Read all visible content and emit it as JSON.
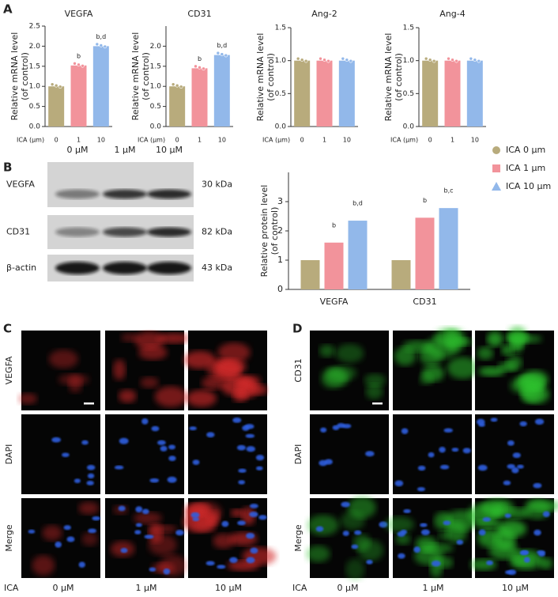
{
  "panel_labels": [
    "A",
    "B",
    "C",
    "D"
  ],
  "chart_data": [
    {
      "type": "bar",
      "title": "VEGFA",
      "ylabel": [
        "Relative mRNA level",
        "(of control)"
      ],
      "xlabel": "ICA (μm)",
      "categories": [
        "0",
        "1",
        "10"
      ],
      "values": [
        1.0,
        1.52,
        2.0
      ],
      "annotations": [
        null,
        "b",
        "b,d"
      ],
      "colors": [
        "#b8ab7c",
        "#f2939b",
        "#92b8ea"
      ],
      "ylim": [
        0,
        2.5
      ],
      "yticks": [
        {
          "value": 0,
          "label": "0.0"
        },
        0.5,
        {
          "value": 1,
          "label": "1.0"
        },
        1.5,
        {
          "value": 2,
          "label": "2.0"
        },
        2.5
      ]
    },
    {
      "type": "bar",
      "title": "CD31",
      "ylabel": [
        "Relative mRNA level",
        "(of control)"
      ],
      "xlabel": "ICA (μm)",
      "categories": [
        "0",
        "1",
        "10"
      ],
      "values": [
        1.0,
        1.45,
        1.78
      ],
      "annotations": [
        null,
        "b",
        "b,d"
      ],
      "colors": [
        "#b8ab7c",
        "#f2939b",
        "#92b8ea"
      ],
      "ylim": [
        0,
        2.5
      ],
      "yticks": [
        {
          "value": 0,
          "label": "0.0"
        },
        0.5,
        {
          "value": 1,
          "label": "1.0"
        },
        1.5,
        {
          "value": 2,
          "label": "2.0"
        }
      ]
    },
    {
      "type": "bar",
      "title": "Ang-2",
      "ylabel": [
        "Relative mRNA level",
        "(of control)"
      ],
      "xlabel": "ICA (μm)",
      "categories": [
        "0",
        "1",
        "10"
      ],
      "values": [
        1.0,
        1.0,
        1.0
      ],
      "colors": [
        "#b8ab7c",
        "#f2939b",
        "#92b8ea"
      ],
      "ylim": [
        0,
        1.5
      ],
      "yticks": [
        {
          "value": 0,
          "label": "0.0"
        },
        0.5,
        {
          "value": 1,
          "label": "1.0"
        },
        1.5
      ]
    },
    {
      "type": "bar",
      "title": "Ang-4",
      "ylabel": [
        "Relative mRNA level",
        "(of control)"
      ],
      "xlabel": "ICA (μm)",
      "categories": [
        "0",
        "1",
        "10"
      ],
      "values": [
        1.0,
        1.0,
        1.0
      ],
      "colors": [
        "#b8ab7c",
        "#f2939b",
        "#92b8ea"
      ],
      "ylim": [
        0,
        1.5
      ],
      "yticks": [
        {
          "value": 0,
          "label": "0.0"
        },
        0.5,
        {
          "value": 1,
          "label": "1.0"
        },
        1.5
      ]
    },
    {
      "type": "grouped_bar",
      "ylabel": [
        "Relative protein level",
        "(of control)"
      ],
      "categories": [
        "VEGFA",
        "CD31"
      ],
      "ylim": [
        0,
        4
      ],
      "yticks": [
        0,
        1,
        2,
        3
      ],
      "legend": "right",
      "series": [
        {
          "name": "ICA 0 μm",
          "color": "#b8ab7c",
          "marker": "circle",
          "values": [
            1.0,
            1.0
          ]
        },
        {
          "name": "ICA 1 μm",
          "color": "#f2939b",
          "marker": "square",
          "values": [
            1.6,
            2.45
          ],
          "annotations": [
            "b",
            "b"
          ]
        },
        {
          "name": "ICA 10 μm",
          "color": "#92b8ea",
          "marker": "triangle",
          "values": [
            2.35,
            2.78
          ],
          "annotations": [
            "b,d",
            "b,c"
          ]
        }
      ]
    }
  ],
  "blot": {
    "headers": [
      "0 μM",
      "1 μM",
      "10 μM"
    ],
    "rows": [
      {
        "label": "VEGFA",
        "size": "30 kDa"
      },
      {
        "label": "CD31",
        "size": "82 kDa"
      },
      {
        "label": "β-actin",
        "size": "43 kDa"
      }
    ]
  },
  "imaging": [
    {
      "rows": [
        "VEGFA",
        "DAPI",
        "Merge"
      ],
      "axis_label": "ICA",
      "columns": [
        "0 μM",
        "1 μM",
        "10 μM"
      ]
    },
    {
      "rows": [
        "CD31",
        "DAPI",
        "Merge"
      ],
      "axis_label": "ICA",
      "columns": [
        "0 μM",
        "1 μM",
        "10 μM"
      ]
    }
  ]
}
